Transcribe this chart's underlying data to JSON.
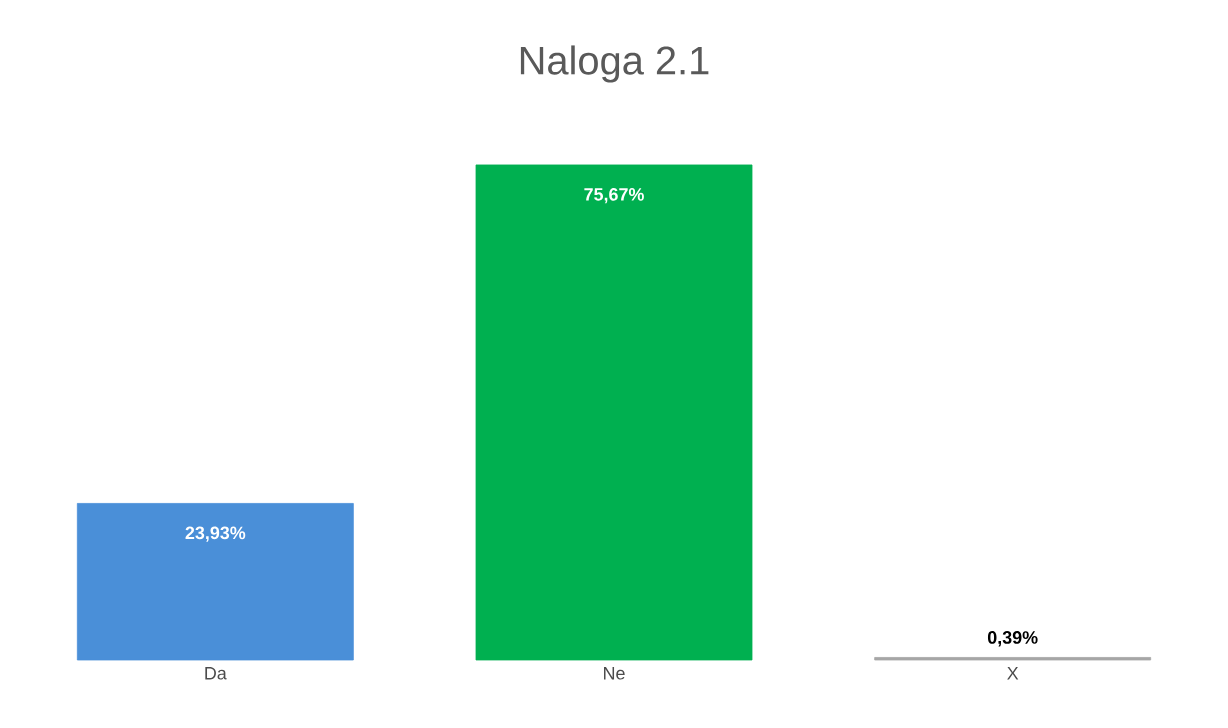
{
  "chart_data": {
    "type": "bar",
    "title": "Naloga 2.1",
    "categories": [
      "Da",
      "Ne",
      "X"
    ],
    "values": [
      23.93,
      75.67,
      0.39
    ],
    "colors": [
      "#4a8fd8",
      "#00b050",
      "#a6a6a6"
    ],
    "value_labels": [
      "23,93%",
      "75,67%",
      "0,39%"
    ]
  }
}
